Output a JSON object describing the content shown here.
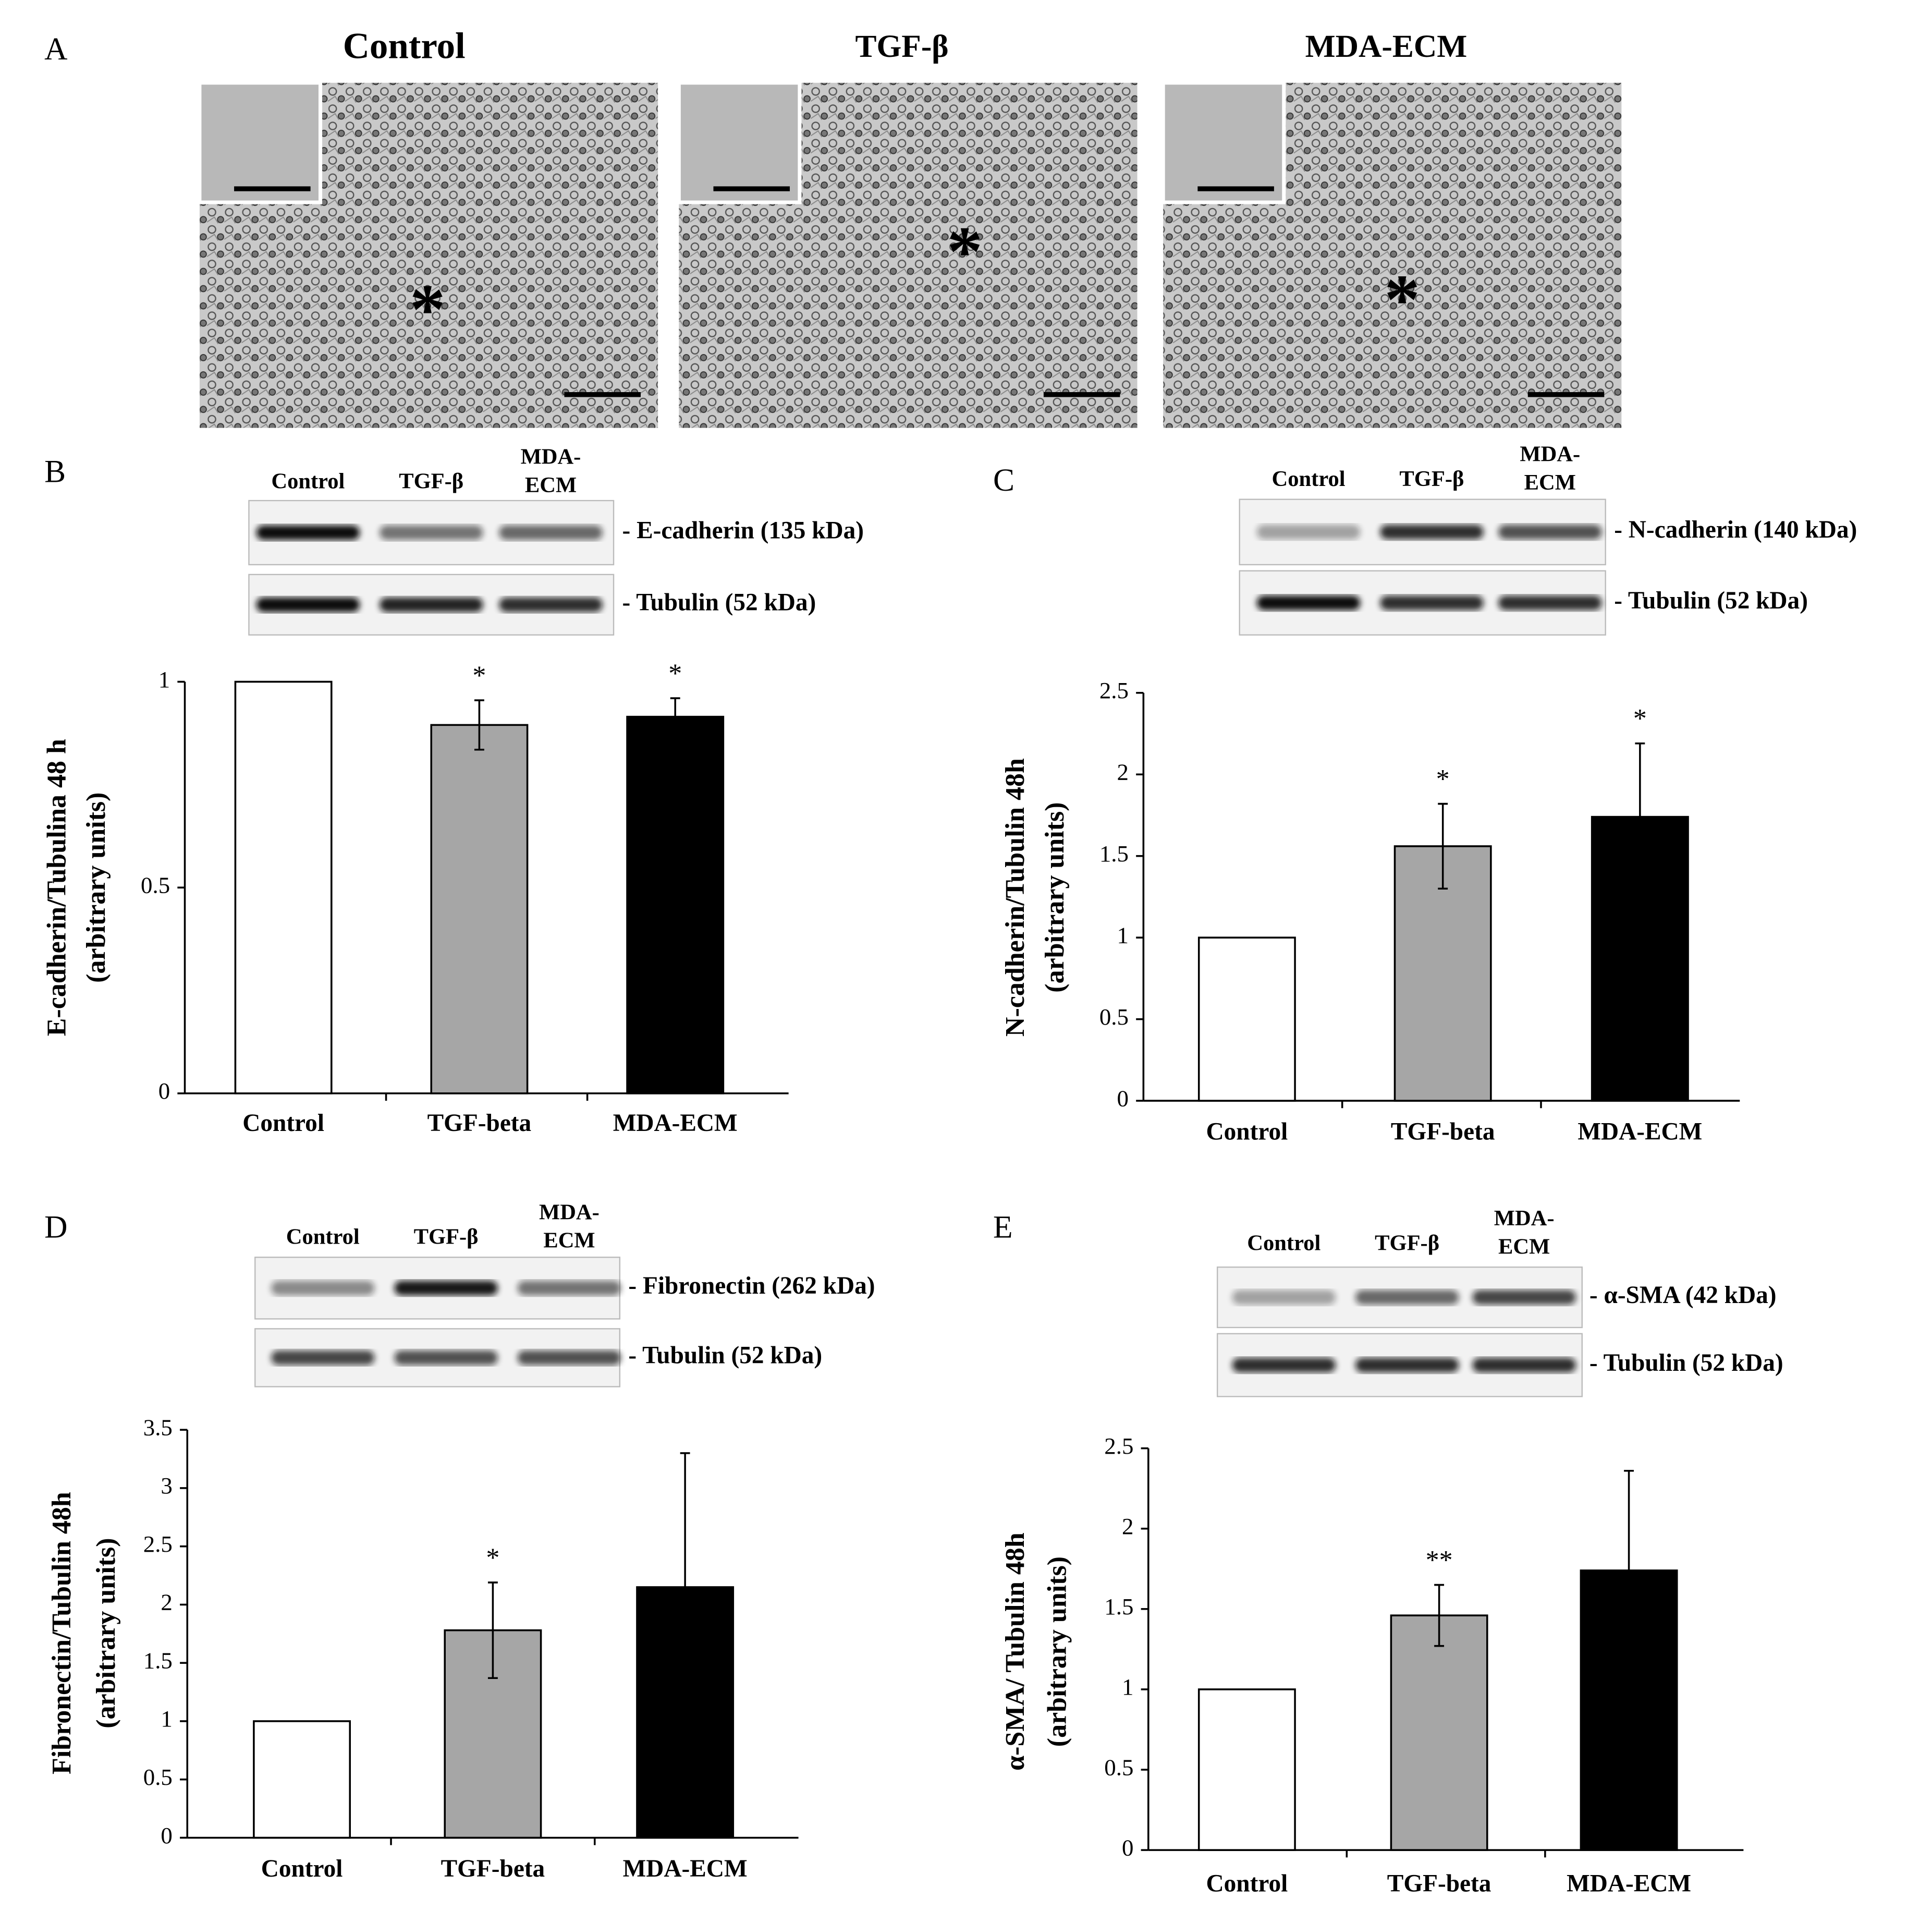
{
  "panel_a": {
    "label": "A",
    "images": [
      {
        "title": "Control",
        "marker": "*"
      },
      {
        "title": "TGF-β",
        "marker": "*"
      },
      {
        "title": "MDA-ECM",
        "marker": "*"
      }
    ]
  },
  "blots": [
    {
      "label": "B",
      "lanes": [
        [
          "Control"
        ],
        [
          "TGF-β"
        ],
        [
          "MDA-",
          "ECM"
        ]
      ],
      "bands": [
        "- E-cadherin (135 kDa)",
        "- Tubulin (52 kDa)"
      ]
    },
    {
      "label": "C",
      "lanes": [
        [
          "Control"
        ],
        [
          "TGF-β"
        ],
        [
          "MDA-",
          "ECM"
        ]
      ],
      "bands": [
        "- N-cadherin (140 kDa)",
        "- Tubulin (52 kDa)"
      ]
    },
    {
      "label": "D",
      "lanes": [
        [
          "Control"
        ],
        [
          "TGF-β"
        ],
        [
          "MDA-",
          "ECM"
        ]
      ],
      "bands": [
        "- Fibronectin (262 kDa)",
        "- Tubulin (52 kDa)"
      ]
    },
    {
      "label": "E",
      "lanes": [
        [
          "Control"
        ],
        [
          "TGF-β"
        ],
        [
          "MDA-",
          "ECM"
        ]
      ],
      "bands": [
        "- α-SMA (42 kDa)",
        "- Tubulin (52 kDa)"
      ]
    }
  ],
  "chart_data": [
    {
      "type": "bar",
      "ylabel": [
        "E-cadherin/Tubulina 48 h",
        "(arbitrary units)"
      ],
      "categories": [
        "Control",
        "TGF-beta",
        "MDA-ECM"
      ],
      "values": [
        1,
        0.895,
        0.915
      ],
      "errors": [
        null,
        0.06,
        0.045
      ],
      "significance": [
        null,
        "*",
        "*"
      ],
      "colors": [
        "#ffffff",
        "#a6a6a6",
        "#000000"
      ],
      "ylim": [
        0,
        1
      ],
      "yticks": [
        0,
        0.5,
        1
      ]
    },
    {
      "type": "bar",
      "ylabel": [
        "N-cadherin/Tubulin 48h",
        "(arbitrary units)"
      ],
      "categories": [
        "Control",
        "TGF-beta",
        "MDA-ECM"
      ],
      "values": [
        1,
        1.56,
        1.74
      ],
      "errors": [
        null,
        0.26,
        0.45
      ],
      "significance": [
        null,
        "*",
        "*"
      ],
      "colors": [
        "#ffffff",
        "#a6a6a6",
        "#000000"
      ],
      "ylim": [
        0,
        2.5
      ],
      "yticks": [
        0,
        0.5,
        1,
        1.5,
        2,
        2.5
      ]
    },
    {
      "type": "bar",
      "ylabel": [
        "Fibronectin/Tubulin 48h",
        "(arbitrary units)"
      ],
      "categories": [
        "Control",
        "TGF-beta",
        "MDA-ECM"
      ],
      "values": [
        1,
        1.78,
        2.15
      ],
      "errors": [
        null,
        0.41,
        1.15
      ],
      "significance": [
        null,
        "*",
        null
      ],
      "colors": [
        "#ffffff",
        "#a6a6a6",
        "#000000"
      ],
      "ylim": [
        0,
        3.5
      ],
      "yticks": [
        0,
        0.5,
        1,
        1.5,
        2,
        2.5,
        3,
        3.5
      ]
    },
    {
      "type": "bar",
      "ylabel": [
        "α-SMA/ Tubulin 48h",
        "(arbitrary units)"
      ],
      "categories": [
        "Control",
        "TGF-beta",
        "MDA-ECM"
      ],
      "values": [
        1,
        1.46,
        1.74
      ],
      "errors": [
        null,
        0.19,
        0.62
      ],
      "significance": [
        null,
        "**",
        null
      ],
      "colors": [
        "#ffffff",
        "#a6a6a6",
        "#000000"
      ],
      "ylim": [
        0,
        2.5
      ],
      "yticks": [
        0,
        0.5,
        1,
        1.5,
        2,
        2.5
      ]
    }
  ]
}
